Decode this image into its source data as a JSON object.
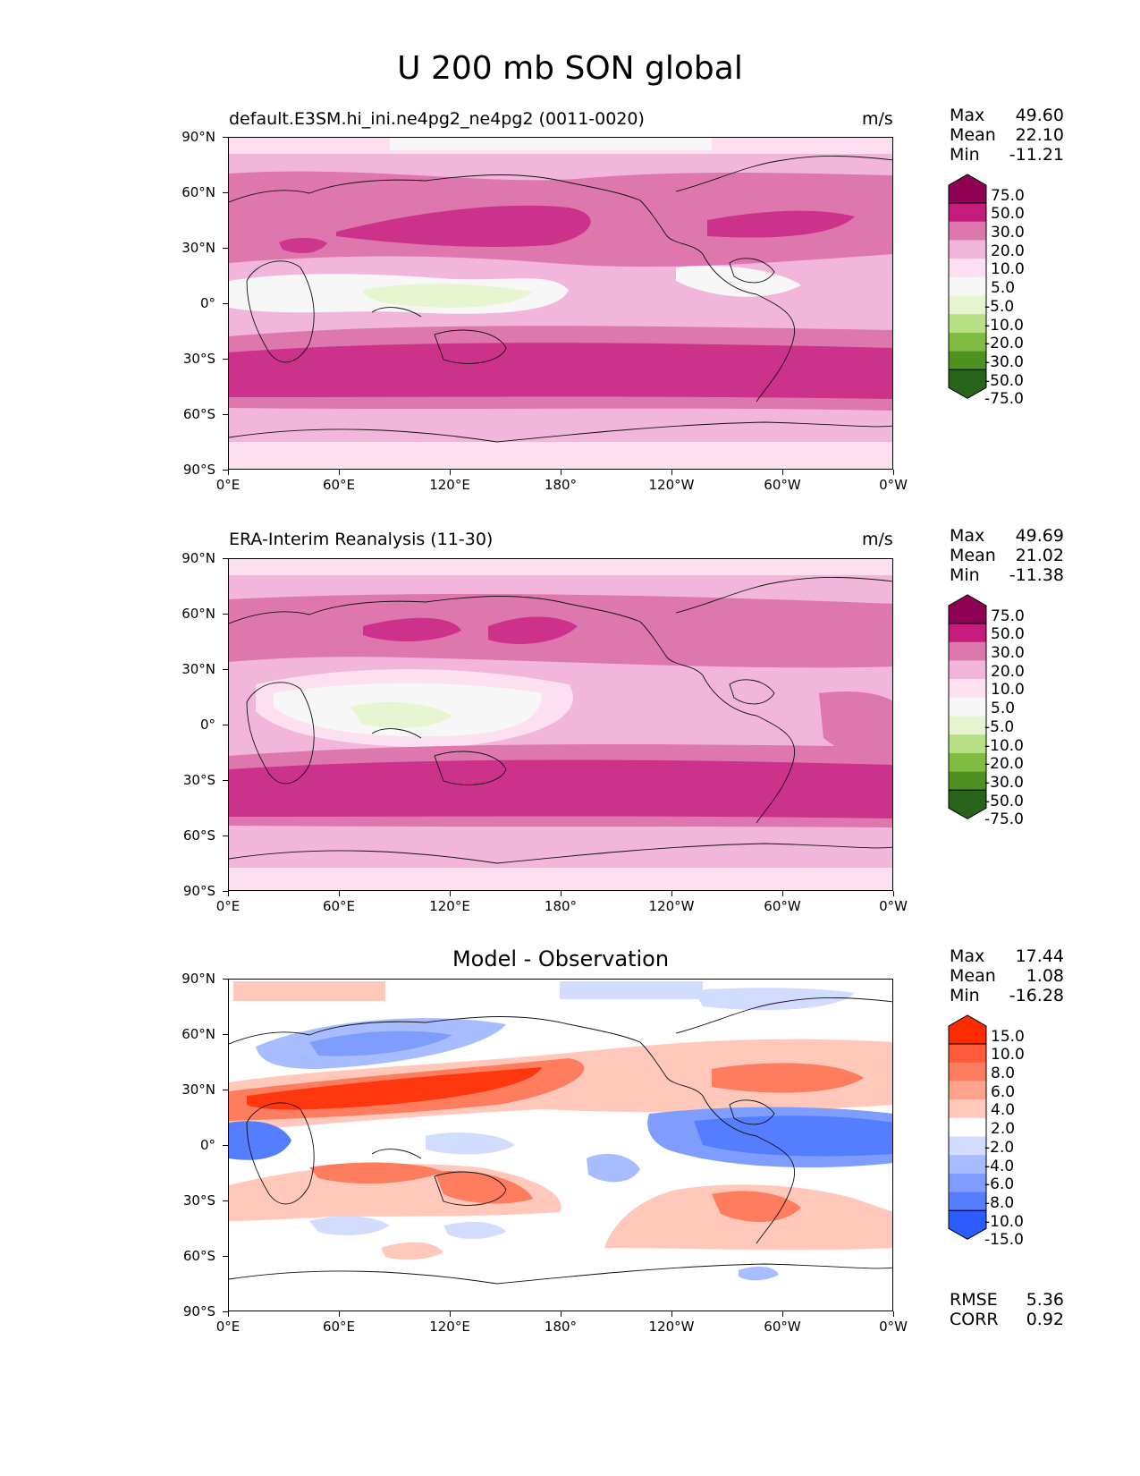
{
  "title": "U 200 mb SON global",
  "ytick_labels": [
    "90°N",
    "60°N",
    "30°N",
    "0°",
    "30°S",
    "60°S",
    "90°S"
  ],
  "xtick_labels": [
    "0°E",
    "60°E",
    "120°E",
    "180°",
    "120°W",
    "60°W",
    "0°W"
  ],
  "panels": [
    {
      "title": "default.E3SM.hi_ini.ne4pg2_ne4pg2 (0011-0020)",
      "units": "m/s",
      "stats": {
        "max_label": "Max",
        "max": "49.60",
        "mean_label": "Mean",
        "mean": "22.10",
        "min_label": "Min",
        "min": "-11.21"
      },
      "colorbar": {
        "levels": [
          "75.0",
          "50.0",
          "30.0",
          "20.0",
          "10.0",
          "5.0",
          "-5.0",
          "-10.0",
          "-20.0",
          "-30.0",
          "-50.0",
          "-75.0"
        ],
        "colors": [
          "#8e0152",
          "#c51b7d",
          "#de77ae",
          "#f1b6da",
          "#fde0ef",
          "#f7f7f7",
          "#e6f5d0",
          "#b8e186",
          "#7fbc41",
          "#4d9221",
          "#276419"
        ]
      },
      "chart_data": {
        "type": "heatmap",
        "variable": "U 200 mb SON",
        "units": "m/s",
        "zonal_bands": [
          {
            "lat": [
              60,
              90
            ],
            "approx_value": 10
          },
          {
            "lat": [
              30,
              60
            ],
            "approx_value": 30
          },
          {
            "lat": [
              10,
              30
            ],
            "approx_value": 20
          },
          {
            "lat": [
              -10,
              10
            ],
            "approx_value": 0
          },
          {
            "lat": [
              -30,
              -10
            ],
            "approx_value": 15
          },
          {
            "lat": [
              -60,
              -30
            ],
            "approx_value": 35
          },
          {
            "lat": [
              -90,
              -60
            ],
            "approx_value": 10
          }
        ],
        "max": 49.6,
        "mean": 22.1,
        "min": -11.21
      }
    },
    {
      "title": "ERA-Interim Reanalysis (11-30)",
      "units": "m/s",
      "stats": {
        "max_label": "Max",
        "max": "49.69",
        "mean_label": "Mean",
        "mean": "21.02",
        "min_label": "Min",
        "min": "-11.38"
      },
      "colorbar": {
        "levels": [
          "75.0",
          "50.0",
          "30.0",
          "20.0",
          "10.0",
          "5.0",
          "-5.0",
          "-10.0",
          "-20.0",
          "-30.0",
          "-50.0",
          "-75.0"
        ],
        "colors": [
          "#8e0152",
          "#c51b7d",
          "#de77ae",
          "#f1b6da",
          "#fde0ef",
          "#f7f7f7",
          "#e6f5d0",
          "#b8e186",
          "#7fbc41",
          "#4d9221",
          "#276419"
        ]
      },
      "chart_data": {
        "type": "heatmap",
        "variable": "U 200 mb SON",
        "units": "m/s",
        "zonal_bands": [
          {
            "lat": [
              60,
              90
            ],
            "approx_value": 10
          },
          {
            "lat": [
              30,
              60
            ],
            "approx_value": 25
          },
          {
            "lat": [
              10,
              30
            ],
            "approx_value": 15
          },
          {
            "lat": [
              -10,
              10
            ],
            "approx_value": 0
          },
          {
            "lat": [
              -30,
              -10
            ],
            "approx_value": 15
          },
          {
            "lat": [
              -60,
              -30
            ],
            "approx_value": 35
          },
          {
            "lat": [
              -90,
              -60
            ],
            "approx_value": 10
          }
        ],
        "max": 49.69,
        "mean": 21.02,
        "min": -11.38
      }
    },
    {
      "title": "Model - Observation",
      "units": "",
      "stats": {
        "max_label": "Max",
        "max": "17.44",
        "mean_label": "Mean",
        "mean": "1.08",
        "min_label": "Min",
        "min": "-16.28"
      },
      "extra_stats": {
        "rmse_label": "RMSE",
        "rmse": "5.36",
        "corr_label": "CORR",
        "corr": "0.92"
      },
      "colorbar": {
        "levels": [
          "15.0",
          "10.0",
          "8.0",
          "6.0",
          "4.0",
          "2.0",
          "-2.0",
          "-4.0",
          "-6.0",
          "-8.0",
          "-10.0",
          "-15.0"
        ],
        "colors": [
          "#ff2a00",
          "#ff5a3a",
          "#ff7d5f",
          "#ffa38c",
          "#ffc8bb",
          "#ffffff",
          "#d1dcff",
          "#a8bdff",
          "#7f9dff",
          "#557dff",
          "#2a5cff"
        ]
      },
      "chart_data": {
        "type": "heatmap",
        "variable": "U 200 mb SON difference",
        "features": [
          {
            "lat": [
              15,
              35
            ],
            "lon": [
              0,
              150
            ],
            "approx_value": 10
          },
          {
            "lat": [
              -10,
              5
            ],
            "lon": [
              -110,
              0
            ],
            "approx_value": -12
          },
          {
            "lat": [
              40,
              60
            ],
            "lon": [
              40,
              90
            ],
            "approx_value": -6
          },
          {
            "lat": [
              -30,
              -15
            ],
            "lon": [
              40,
              170
            ],
            "approx_value": 6
          }
        ],
        "max": 17.44,
        "mean": 1.08,
        "min": -16.28,
        "rmse": 5.36,
        "corr": 0.92
      }
    }
  ]
}
